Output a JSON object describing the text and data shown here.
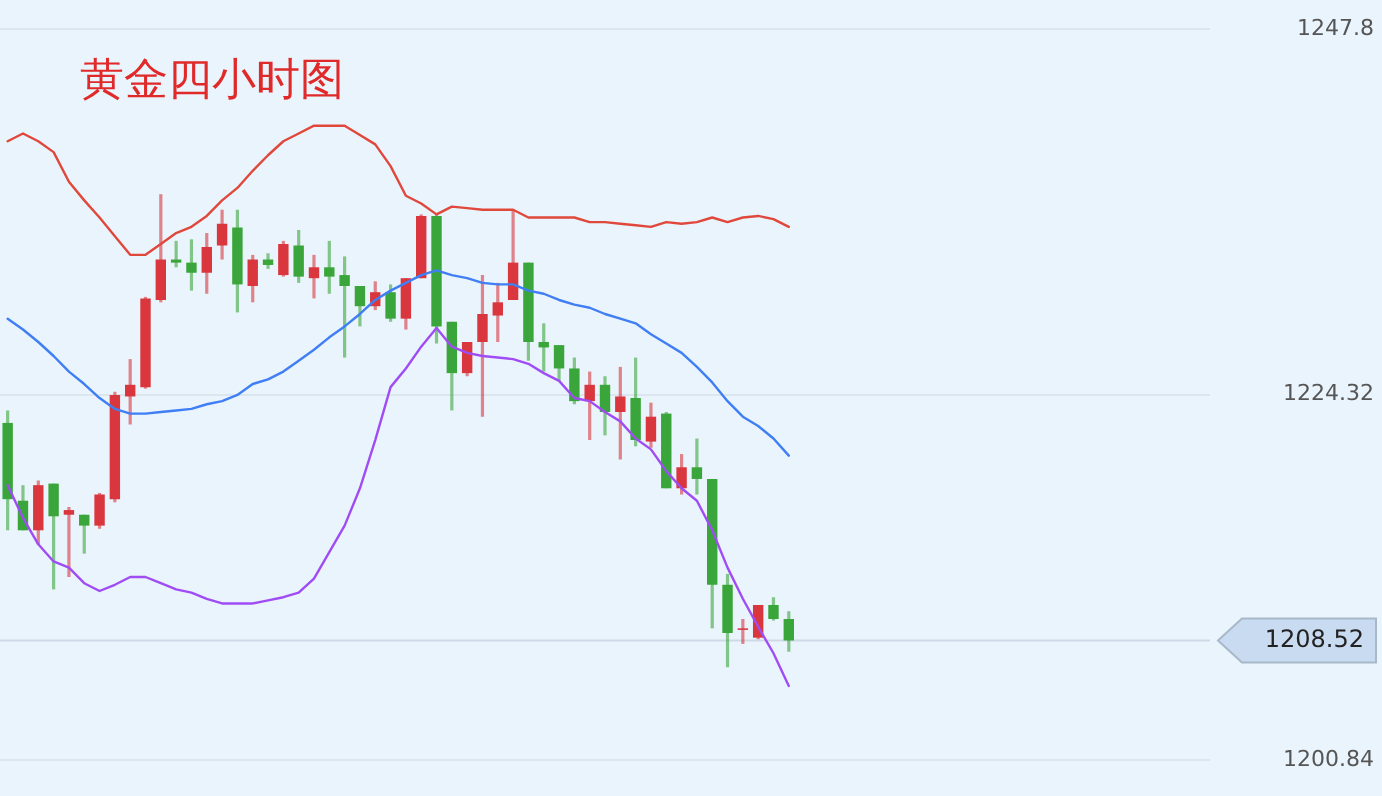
{
  "chart_data": {
    "type": "candlestick",
    "title": "黄金四小时图",
    "categories": [
      null,
      null,
      null,
      null,
      null,
      null,
      null,
      null,
      null,
      null,
      null,
      null,
      null,
      null,
      null,
      null,
      null,
      null,
      null,
      null,
      null,
      null,
      null,
      null,
      null,
      null,
      null,
      null,
      null,
      null,
      null,
      null,
      null,
      null,
      null,
      null,
      null,
      null,
      null,
      null,
      null,
      null,
      null,
      null,
      null,
      null,
      null,
      null,
      null,
      null,
      null,
      null,
      null,
      null,
      null,
      null,
      null,
      null,
      null,
      null,
      null,
      null,
      null,
      null,
      null,
      null,
      null,
      null,
      null,
      null,
      null,
      null,
      null,
      null,
      null,
      null,
      null,
      null,
      null
    ],
    "ohlc": [
      [
        1222.5,
        1223.3,
        1215.6,
        1217.6
      ],
      [
        1217.5,
        1218.5,
        1215.6,
        1215.6
      ],
      [
        1215.6,
        1218.8,
        1214.7,
        1218.5
      ],
      [
        1218.6,
        1218.6,
        1211.8,
        1216.5
      ],
      [
        1216.6,
        1217.1,
        1212.6,
        1216.9
      ],
      [
        1216.6,
        1216.6,
        1214.1,
        1215.9
      ],
      [
        1215.9,
        1218.0,
        1215.7,
        1217.9
      ],
      [
        1217.6,
        1224.5,
        1217.4,
        1224.3
      ],
      [
        1224.2,
        1226.6,
        1222.4,
        1224.95
      ],
      [
        1224.8,
        1230.6,
        1224.7,
        1230.5
      ],
      [
        1230.4,
        1237.2,
        1230.25,
        1233.0
      ],
      [
        1233.0,
        1234.2,
        1232.5,
        1232.8
      ],
      [
        1232.8,
        1234.3,
        1231.0,
        1232.15
      ],
      [
        1232.15,
        1234.7,
        1230.8,
        1233.8
      ],
      [
        1233.9,
        1236.2,
        1233.0,
        1235.3
      ],
      [
        1235.05,
        1236.2,
        1229.6,
        1231.4
      ],
      [
        1231.3,
        1233.3,
        1230.25,
        1233.0
      ],
      [
        1233.0,
        1233.4,
        1232.4,
        1232.65
      ],
      [
        1232.0,
        1234.2,
        1231.9,
        1234.0
      ],
      [
        1233.9,
        1234.9,
        1231.5,
        1231.9
      ],
      [
        1231.8,
        1233.3,
        1230.5,
        1232.5
      ],
      [
        1232.5,
        1234.2,
        1230.8,
        1231.9
      ],
      [
        1232.0,
        1233.2,
        1226.7,
        1231.3
      ],
      [
        1231.3,
        1231.3,
        1228.7,
        1230.0
      ],
      [
        1230.0,
        1231.6,
        1229.75,
        1230.9
      ],
      [
        1230.9,
        1231.4,
        1229.0,
        1229.2
      ],
      [
        1229.2,
        1231.8,
        1228.5,
        1231.8
      ],
      [
        1231.8,
        1235.9,
        1231.8,
        1235.8
      ],
      [
        1235.8,
        1235.9,
        1227.6,
        1228.7
      ],
      [
        1229.0,
        1229.0,
        1223.3,
        1225.7
      ],
      [
        1225.7,
        1227.7,
        1225.5,
        1227.7
      ],
      [
        1227.7,
        1232.0,
        1222.9,
        1229.5
      ],
      [
        1229.4,
        1231.5,
        1227.7,
        1230.25
      ],
      [
        1230.4,
        1236.2,
        1230.4,
        1232.8
      ],
      [
        1232.8,
        1232.8,
        1226.5,
        1227.7
      ],
      [
        1227.7,
        1228.9,
        1225.8,
        1227.35
      ],
      [
        1227.5,
        1227.5,
        1225.2,
        1226.0
      ],
      [
        1226.0,
        1226.7,
        1223.7,
        1223.9
      ],
      [
        1223.9,
        1225.8,
        1221.4,
        1224.95
      ],
      [
        1224.95,
        1225.5,
        1221.7,
        1223.2
      ],
      [
        1223.2,
        1226.1,
        1220.15,
        1224.2
      ],
      [
        1224.1,
        1226.7,
        1221.0,
        1221.4
      ],
      [
        1221.3,
        1223.8,
        1220.9,
        1222.9
      ],
      [
        1223.1,
        1223.2,
        1218.3,
        1218.3
      ],
      [
        1218.3,
        1220.5,
        1217.9,
        1219.65
      ],
      [
        1219.65,
        1221.5,
        1217.9,
        1218.9
      ],
      [
        1218.9,
        1218.9,
        1209.3,
        1212.1
      ],
      [
        1212.1,
        1212.8,
        1206.8,
        1209.0
      ],
      [
        1209.2,
        1209.9,
        1208.3,
        1209.3
      ],
      [
        1208.7,
        1210.8,
        1208.6,
        1210.8
      ],
      [
        1210.8,
        1211.3,
        1209.8,
        1209.9
      ],
      [
        1209.9,
        1210.4,
        1207.8,
        1208.52
      ],
      null,
      null,
      null,
      null,
      null,
      null,
      null,
      null,
      null,
      null,
      null,
      null,
      null,
      null,
      null,
      null,
      null,
      null,
      null,
      null,
      null,
      null,
      null,
      null,
      null,
      null,
      null
    ],
    "colors": [
      "#3aa53a",
      "#3aa53a",
      "#d9363e",
      "#3aa53a",
      "#d9363e",
      "#3aa53a",
      "#d9363e",
      "#d9363e",
      "#d9363e",
      "#d9363e",
      "#d9363e",
      "#3aa53a",
      "#3aa53a",
      "#d9363e",
      "#d9363e",
      "#3aa53a",
      "#d9363e",
      "#3aa53a",
      "#d9363e",
      "#3aa53a",
      "#d9363e",
      "#3aa53a",
      "#3aa53a",
      "#3aa53a",
      "#d9363e",
      "#3aa53a",
      "#d9363e",
      "#d9363e",
      "#3aa53a",
      "#3aa53a",
      "#d9363e",
      "#d9363e",
      "#d9363e",
      "#d9363e",
      "#3aa53a",
      "#3aa53a",
      "#3aa53a",
      "#3aa53a",
      "#d9363e",
      "#3aa53a",
      "#d9363e",
      "#3aa53a",
      "#d9363e",
      "#3aa53a",
      "#d9363e",
      "#3aa53a",
      "#3aa53a",
      "#3aa53a",
      "#d9363e",
      "#d9363e",
      "#3aa53a",
      "#3aa53a",
      null,
      null,
      null,
      null,
      null,
      null,
      null,
      null,
      null,
      null,
      null,
      null,
      null,
      null,
      null,
      null,
      null,
      null,
      null,
      null,
      null,
      null,
      null,
      null,
      null,
      null,
      null
    ],
    "series": [
      {
        "type": "line",
        "color": "#e0483c",
        "values": [
          1240.6,
          1241.1,
          1240.6,
          1239.9,
          1238.0,
          1236.8,
          1235.7,
          1234.5,
          1233.3,
          1233.3,
          1234.0,
          1234.7,
          1235.1,
          1235.8,
          1236.8,
          1237.6,
          1238.7,
          1239.7,
          1240.6,
          1241.1,
          1241.6,
          1241.6,
          1241.6,
          1241.0,
          1240.4,
          1239.0,
          1237.1,
          1236.6,
          1235.9,
          1236.4,
          1236.3,
          1236.2,
          1236.2,
          1236.2,
          1235.7,
          1235.7,
          1235.7,
          1235.7,
          1235.4,
          1235.4,
          1235.3,
          1235.2,
          1235.1,
          1235.4,
          1235.3,
          1235.4,
          1235.7,
          1235.4,
          1235.7,
          1235.8,
          1235.6,
          1235.1,
          null,
          null,
          null,
          null,
          null,
          null,
          null,
          null,
          null,
          null,
          null,
          null,
          null,
          null,
          null,
          null,
          null,
          null,
          null,
          null,
          null,
          null,
          null,
          null,
          null,
          null,
          null
        ]
      },
      {
        "type": "line",
        "color": "#3f7ef5",
        "values": [
          1229.2,
          1228.5,
          1227.7,
          1226.8,
          1225.8,
          1225.0,
          1224.1,
          1223.4,
          1223.1,
          1223.1,
          1223.2,
          1223.3,
          1223.4,
          1223.7,
          1223.9,
          1224.3,
          1225.0,
          1225.3,
          1225.8,
          1226.5,
          1227.2,
          1228.0,
          1228.7,
          1229.5,
          1230.4,
          1231.0,
          1231.5,
          1232.0,
          1232.3,
          1232.0,
          1231.8,
          1231.5,
          1231.4,
          1231.4,
          1231.0,
          1230.8,
          1230.4,
          1230.1,
          1229.9,
          1229.5,
          1229.2,
          1228.9,
          1228.2,
          1227.6,
          1227.0,
          1226.1,
          1225.1,
          1223.9,
          1222.9,
          1222.3,
          1221.5,
          1220.4,
          null,
          null,
          null,
          null,
          null,
          null,
          null,
          null,
          null,
          null,
          null,
          null,
          null,
          null,
          null,
          null,
          null,
          null,
          null,
          null,
          null,
          null,
          null,
          null,
          null,
          null,
          null
        ]
      },
      {
        "type": "line",
        "color": "#a04cf5",
        "values": [
          1218.5,
          1216.4,
          1214.7,
          1213.6,
          1213.2,
          1212.2,
          1211.7,
          1212.1,
          1212.6,
          1212.6,
          1212.2,
          1211.8,
          1211.6,
          1211.2,
          1210.9,
          1210.9,
          1210.9,
          1211.1,
          1211.3,
          1211.6,
          1212.5,
          1214.2,
          1215.9,
          1218.3,
          1221.4,
          1224.8,
          1226.0,
          1227.4,
          1228.6,
          1227.4,
          1227.0,
          1226.8,
          1226.7,
          1226.6,
          1226.3,
          1225.7,
          1225.2,
          1224.1,
          1223.9,
          1223.2,
          1222.6,
          1221.5,
          1220.8,
          1219.4,
          1218.3,
          1217.5,
          1215.6,
          1213.2,
          1211.2,
          1209.4,
          1207.7,
          1205.6,
          null,
          null,
          null,
          null,
          null,
          null,
          null,
          null,
          null,
          null,
          null,
          null,
          null,
          null,
          null,
          null,
          null,
          null,
          null,
          null,
          null,
          null,
          null,
          null,
          null,
          null,
          null
        ]
      }
    ],
    "ylim": [
      1200.84,
      1247.8
    ],
    "yticks": [
      1247.8,
      1224.32,
      1200.84
    ],
    "tick_labels": "y",
    "grid": "y",
    "legend": false,
    "marker": "none",
    "ref_lines": [
      {
        "axis": "y",
        "value": 1208.52,
        "label": "1208.52"
      }
    ]
  }
}
